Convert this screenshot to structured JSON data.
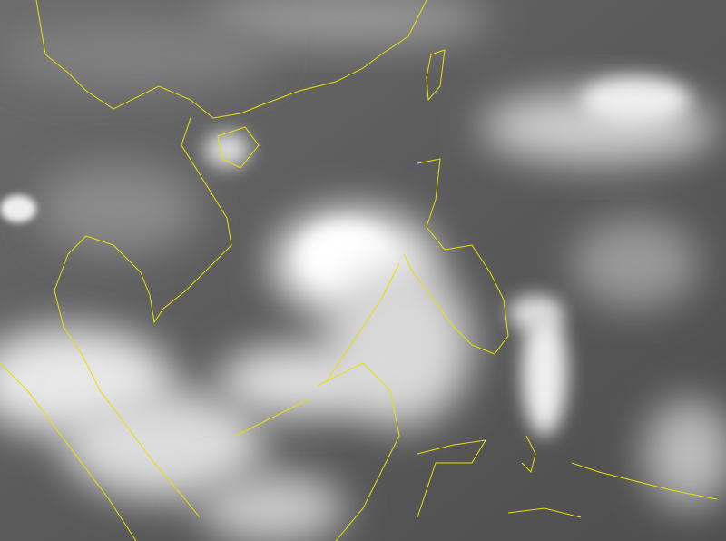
{
  "image": {
    "kind": "infrared satellite image with coastline overlay",
    "colors": {
      "background": "#5a5a5a",
      "cloud": "#ffffff",
      "coastline": "#e8e000"
    },
    "features": [
      "tropical-storm-cloud-mass",
      "coastlines"
    ]
  }
}
